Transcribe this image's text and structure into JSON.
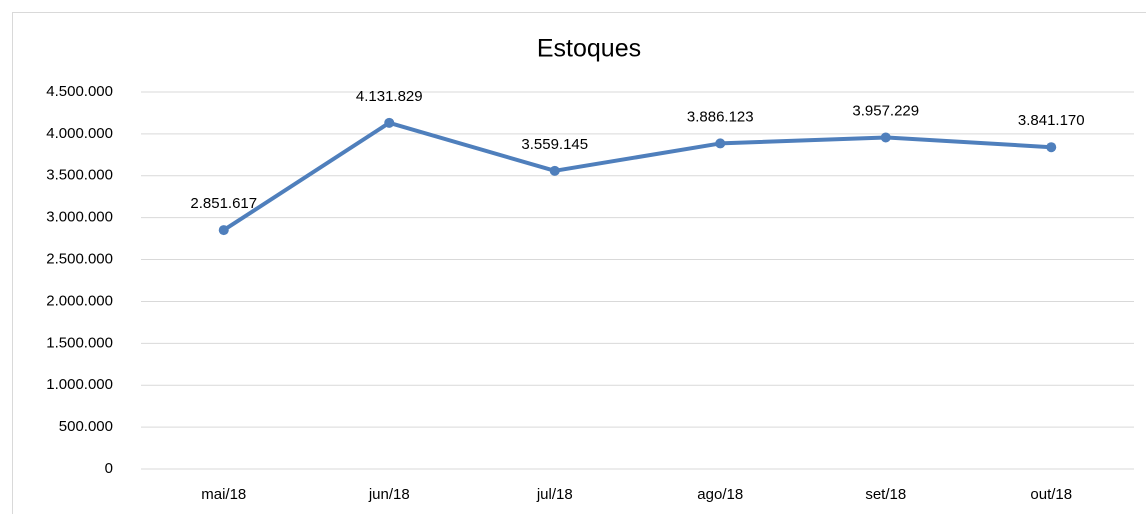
{
  "chart_data": {
    "type": "line",
    "title": "Estoques",
    "categories": [
      "mai/18",
      "jun/18",
      "jul/18",
      "ago/18",
      "set/18",
      "out/18"
    ],
    "series": [
      {
        "name": "Estoques",
        "color": "#4f7fbc",
        "values": [
          2851617,
          4131829,
          3559145,
          3886123,
          3957229,
          3841170
        ],
        "value_labels": [
          "2.851.617",
          "4.131.829",
          "3.559.145",
          "3.886.123",
          "3.957.229",
          "3.841.170"
        ]
      }
    ],
    "ylim": [
      0,
      4500000
    ],
    "yticks": [
      0,
      {
        "value": 500000,
        "label": "500.000"
      },
      {
        "value": 1000000,
        "label": "1.000.000"
      },
      {
        "value": 1500000,
        "label": "1.500.000"
      },
      {
        "value": 2000000,
        "label": "2.000.000"
      },
      {
        "value": 2500000,
        "label": "2.500.000"
      },
      {
        "value": 3000000,
        "label": "3.000.000"
      },
      {
        "value": 3500000,
        "label": "3.500.000"
      },
      {
        "value": 4000000,
        "label": "4.000.000"
      },
      {
        "value": 4500000,
        "label": "4.500.000"
      }
    ],
    "grid": true
  }
}
